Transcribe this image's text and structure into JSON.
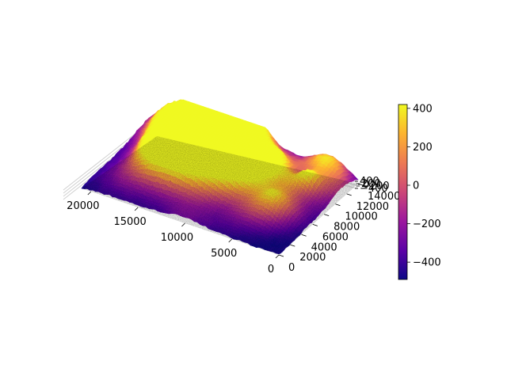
{
  "chart_data": {
    "type": "surface3d",
    "title": "",
    "xlabel": "",
    "ylabel": "",
    "zlabel": "",
    "colormap": "plasma",
    "colormap_stops": [
      "#0d0887",
      "#5c01a6",
      "#9c179e",
      "#cc4778",
      "#ed7953",
      "#fdb42f",
      "#f0f921"
    ],
    "xlim": [
      0,
      21000
    ],
    "ylim": [
      0,
      14000
    ],
    "zlim": [
      -490,
      420
    ],
    "x_ticks": [
      0,
      5000,
      10000,
      15000,
      20000
    ],
    "y_ticks": [
      0,
      2000,
      4000,
      6000,
      8000,
      10000,
      12000,
      14000
    ],
    "z_tick_labels": [
      "400",
      "200",
      "0",
      "−200",
      "−400"
    ],
    "colorbar": {
      "min": -490,
      "max": 420,
      "ticks": [
        400,
        200,
        0,
        -200,
        -400
      ],
      "tick_labels": [
        "400",
        "200",
        "0",
        "−200",
        "−400"
      ]
    },
    "surface_description": "Rugged terrain; central region reaches ~+400, outer regions near -400 to -490"
  }
}
